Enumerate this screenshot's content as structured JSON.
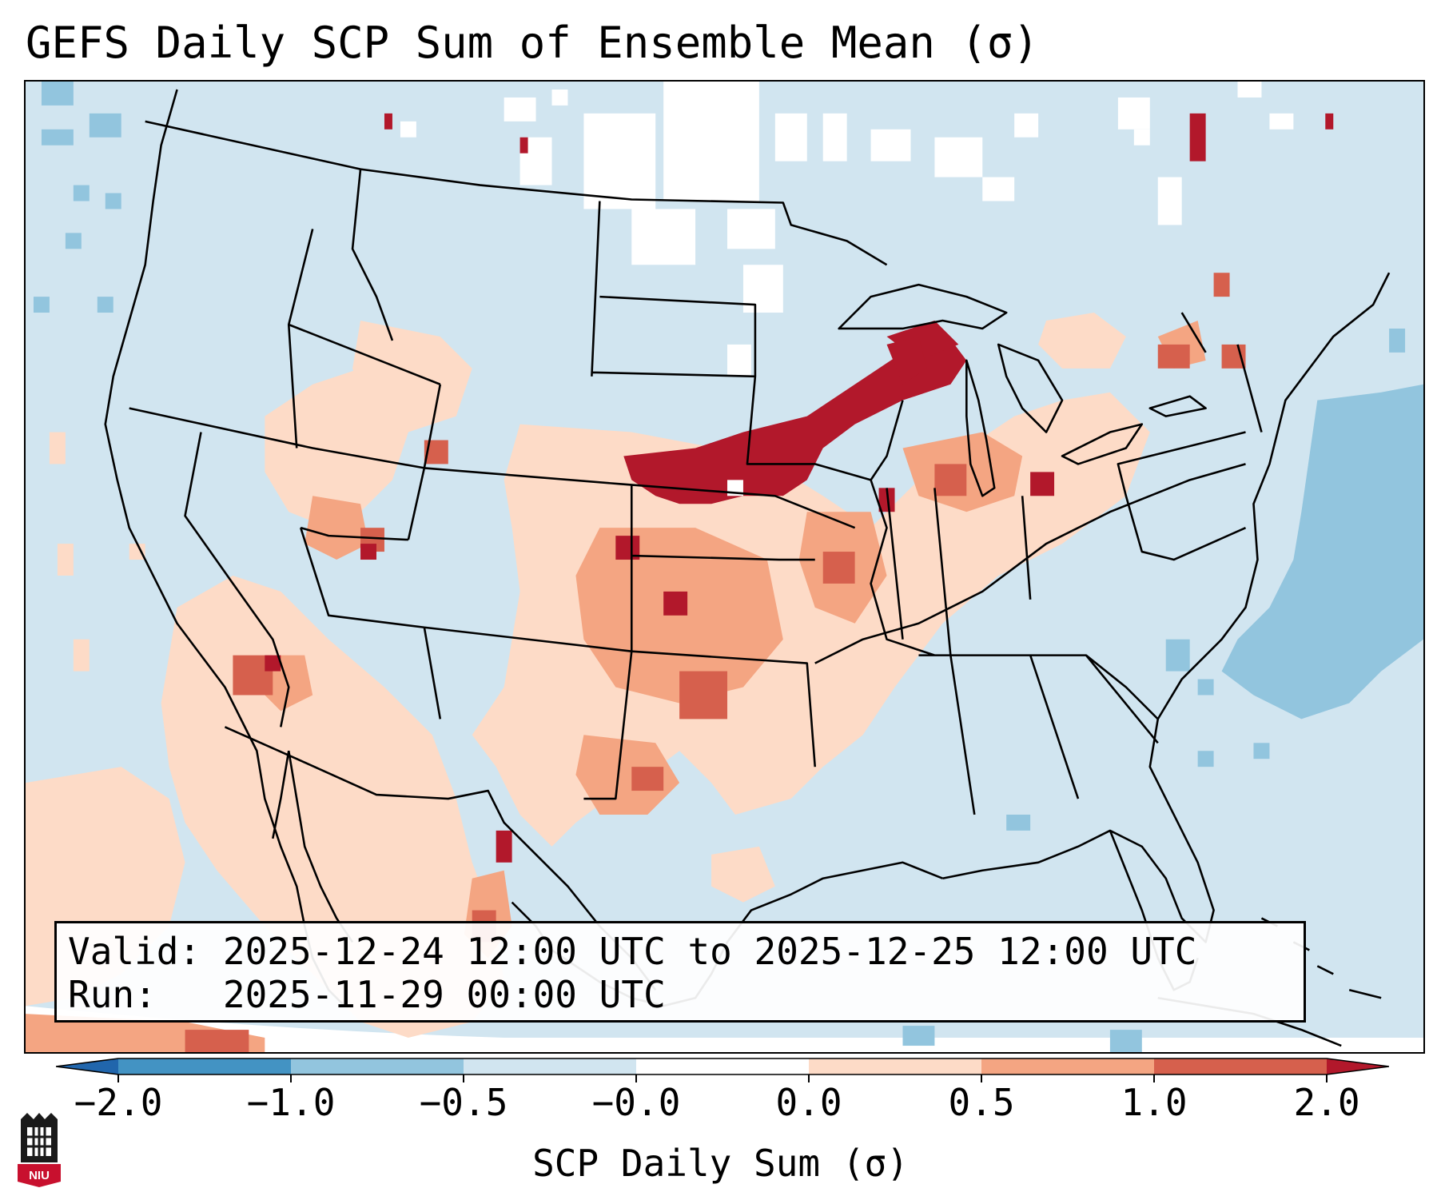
{
  "title": "GEFS Daily SCP Sum of Ensemble Mean (σ)",
  "info": {
    "valid_label": "Valid:",
    "valid_value": "2025-12-24 12:00 UTC to 2025-12-25 12:00 UTC",
    "run_label": "Run:",
    "run_value": "2025-11-29 00:00 UTC"
  },
  "colorbar": {
    "label": "SCP Daily Sum (σ)",
    "ticks": [
      "−2.0",
      "−1.0",
      "−0.5",
      "−0.0",
      "0.0",
      "0.5",
      "1.0",
      "2.0"
    ],
    "bins": [
      {
        "range": "<-2.0",
        "color": "#2166ac"
      },
      {
        "range": "-2.0 to -1.0",
        "color": "#4393c3"
      },
      {
        "range": "-1.0 to -0.5",
        "color": "#92c5de"
      },
      {
        "range": "-0.5 to -0.0",
        "color": "#d1e5f0"
      },
      {
        "range": "-0.0 to 0.0",
        "color": "#ffffff"
      },
      {
        "range": "0.0 to 0.5",
        "color": "#fddbc7"
      },
      {
        "range": "0.5 to 1.0",
        "color": "#f4a582"
      },
      {
        "range": "1.0 to 2.0",
        "color": "#d6604d"
      },
      {
        "range": ">2.0",
        "color": "#b2182b"
      }
    ]
  },
  "logo": {
    "text": "NIU",
    "icon": "university-logo-icon"
  },
  "map": {
    "projection": "Lambert conformal conic over CONUS",
    "background_value_bin": "-0.5 to -0.0",
    "highlights": [
      {
        "region": "Iowa / southern Minnesota / Wisconsin",
        "bin": ">2.0"
      },
      {
        "region": "Kansas / Oklahoma / Missouri",
        "bin": "0.0 to 1.0"
      },
      {
        "region": "Michigan / Ohio Valley",
        "bin": "0.0 to 2.0"
      },
      {
        "region": "Western Atlantic",
        "bin": "-1.0 to -0.5"
      },
      {
        "region": "Northern Plains / Canada",
        "bin": "-0.0 to 0.0"
      }
    ]
  }
}
